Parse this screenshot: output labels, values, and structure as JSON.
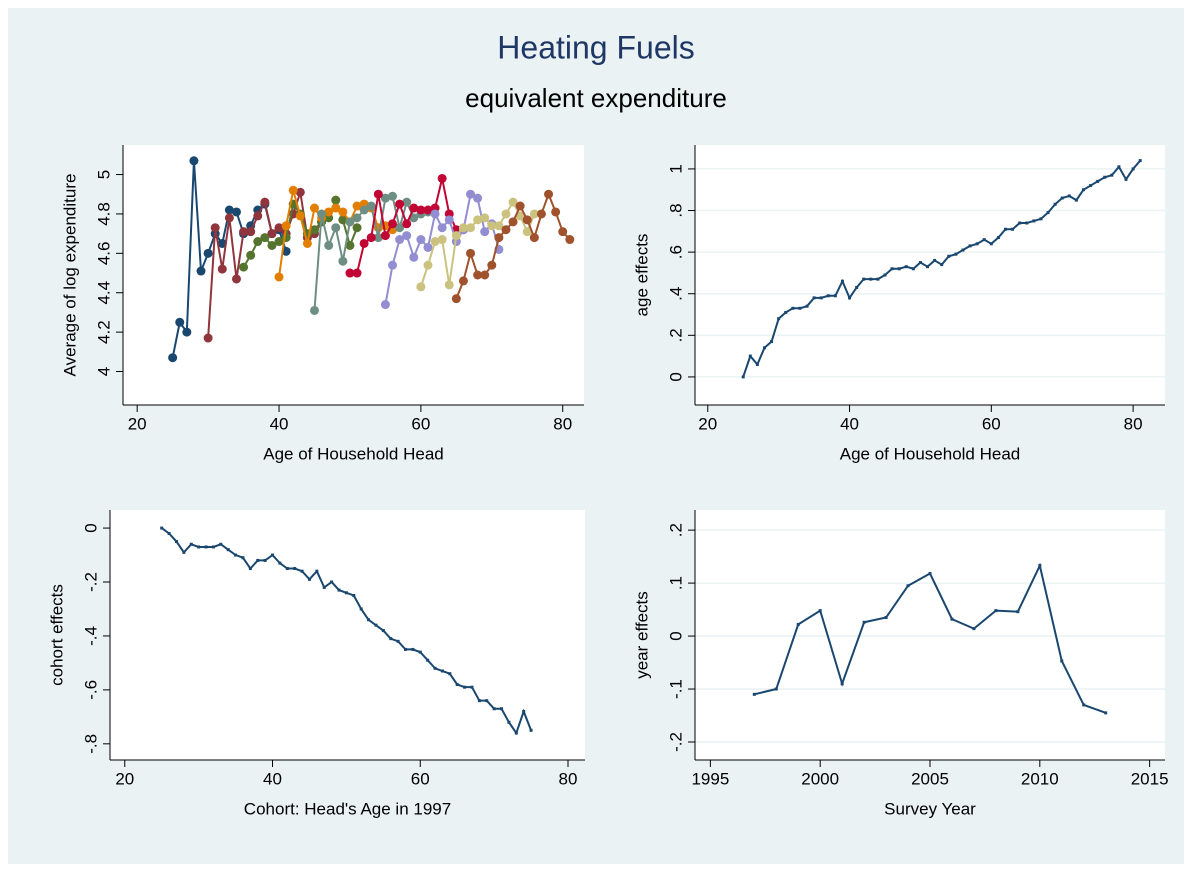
{
  "title": "Heating Fuels",
  "subtitle": "equivalent expenditure",
  "chart_data": [
    {
      "type": "line",
      "marker": "circle",
      "grid": false,
      "x_label": "Age of Household Head",
      "y_label": "Average of log expenditure",
      "xlim": [
        18,
        83
      ],
      "xticks": [
        20,
        40,
        60,
        80
      ],
      "ylim": [
        3.83,
        5.15
      ],
      "yticks": [
        4,
        4.2,
        4.4,
        4.6,
        4.8,
        5
      ],
      "series": [
        {
          "color": "#1a476f",
          "x": [
            25,
            26,
            27,
            28,
            29,
            30,
            31,
            32,
            33,
            34,
            35,
            36,
            37,
            38,
            39,
            40,
            41
          ],
          "values": [
            4.07,
            4.25,
            4.2,
            5.07,
            4.51,
            4.6,
            4.7,
            4.65,
            4.82,
            4.81,
            4.7,
            4.74,
            4.82,
            4.85,
            4.7,
            4.72,
            4.61
          ]
        },
        {
          "color": "#90353b",
          "x": [
            30,
            31,
            32,
            33,
            34,
            35,
            36,
            37,
            38,
            39,
            40,
            41,
            42,
            43,
            44,
            45,
            46
          ],
          "values": [
            4.17,
            4.73,
            4.52,
            4.78,
            4.47,
            4.71,
            4.71,
            4.79,
            4.86,
            4.7,
            4.73,
            4.7,
            4.8,
            4.91,
            4.68,
            4.7,
            4.76
          ]
        },
        {
          "color": "#55752f",
          "x": [
            35,
            36,
            37,
            38,
            39,
            40,
            41,
            42,
            43,
            44,
            45,
            46,
            47,
            48,
            49,
            50,
            51
          ],
          "values": [
            4.53,
            4.59,
            4.66,
            4.68,
            4.64,
            4.66,
            4.68,
            4.85,
            4.8,
            4.7,
            4.72,
            4.76,
            4.78,
            4.87,
            4.77,
            4.64,
            4.73
          ]
        },
        {
          "color": "#e37e00",
          "x": [
            40,
            41,
            42,
            43,
            44,
            45,
            46,
            47,
            48,
            49,
            50,
            51,
            52,
            53,
            54,
            55,
            56
          ],
          "values": [
            4.48,
            4.74,
            4.92,
            4.79,
            4.65,
            4.83,
            4.78,
            4.81,
            4.83,
            4.81,
            4.76,
            4.84,
            4.85,
            4.83,
            4.73,
            4.74,
            4.72
          ]
        },
        {
          "color": "#6e8e84",
          "x": [
            45,
            46,
            47,
            48,
            49,
            50,
            51,
            52,
            53,
            54,
            55,
            56,
            57,
            58,
            59,
            60,
            61
          ],
          "values": [
            4.31,
            4.8,
            4.64,
            4.73,
            4.56,
            4.76,
            4.78,
            4.82,
            4.84,
            4.68,
            4.88,
            4.89,
            4.73,
            4.86,
            4.78,
            4.8,
            4.81
          ]
        },
        {
          "color": "#c10534",
          "x": [
            50,
            51,
            52,
            53,
            54,
            55,
            56,
            57,
            58,
            59,
            60,
            61,
            62,
            63,
            64,
            65,
            66
          ],
          "values": [
            4.5,
            4.5,
            4.65,
            4.68,
            4.9,
            4.69,
            4.75,
            4.85,
            4.75,
            4.83,
            4.82,
            4.82,
            4.83,
            4.98,
            4.8,
            4.72,
            4.72
          ]
        },
        {
          "color": "#938dd2",
          "x": [
            55,
            56,
            57,
            58,
            59,
            60,
            61,
            62,
            63,
            64,
            65,
            66,
            67,
            68,
            69,
            70,
            71
          ],
          "values": [
            4.34,
            4.54,
            4.67,
            4.69,
            4.58,
            4.67,
            4.63,
            4.8,
            4.73,
            4.77,
            4.66,
            4.72,
            4.9,
            4.88,
            4.71,
            4.75,
            4.62
          ]
        },
        {
          "color": "#cac27e",
          "x": [
            60,
            61,
            62,
            63,
            64,
            65,
            66,
            67,
            68,
            69,
            70,
            71,
            72,
            73,
            74,
            75,
            76
          ],
          "values": [
            4.43,
            4.54,
            4.66,
            4.67,
            4.44,
            4.69,
            4.73,
            4.73,
            4.77,
            4.78,
            4.74,
            4.74,
            4.8,
            4.86,
            4.79,
            4.71,
            4.8
          ]
        },
        {
          "color": "#a0522d",
          "x": [
            65,
            66,
            67,
            68,
            69,
            70,
            71,
            72,
            73,
            74,
            75,
            76,
            77,
            78,
            79,
            80,
            81
          ],
          "values": [
            4.37,
            4.46,
            4.6,
            4.49,
            4.49,
            4.54,
            4.68,
            4.72,
            4.76,
            4.84,
            4.77,
            4.68,
            4.8,
            4.9,
            4.81,
            4.71,
            4.67
          ]
        }
      ]
    },
    {
      "type": "line",
      "marker": "square",
      "grid": true,
      "x_label": "Age of Household Head",
      "y_label": "age effects",
      "xlim": [
        18.2,
        84.5
      ],
      "xticks": [
        20,
        40,
        60,
        80
      ],
      "ylim": [
        -0.135,
        1.115
      ],
      "yticks": [
        0,
        {
          "value": 0.2,
          "label": ".2"
        },
        {
          "value": 0.4,
          "label": ".4"
        },
        {
          "value": 0.6,
          "label": ".6"
        },
        {
          "value": 0.8,
          "label": ".8"
        },
        1
      ],
      "series": [
        {
          "color": "#1a476f",
          "x": [
            25,
            26,
            27,
            28,
            29,
            30,
            31,
            32,
            33,
            34,
            35,
            36,
            37,
            38,
            39,
            40,
            41,
            42,
            43,
            44,
            45,
            46,
            47,
            48,
            49,
            50,
            51,
            52,
            53,
            54,
            55,
            56,
            57,
            58,
            59,
            60,
            61,
            62,
            63,
            64,
            65,
            66,
            67,
            68,
            69,
            70,
            71,
            72,
            73,
            74,
            75,
            76,
            77,
            78,
            79,
            80,
            81
          ],
          "values": [
            0,
            0.1,
            0.06,
            0.14,
            0.17,
            0.28,
            0.31,
            0.33,
            0.33,
            0.34,
            0.38,
            0.38,
            0.39,
            0.39,
            0.46,
            0.38,
            0.43,
            0.47,
            0.47,
            0.47,
            0.49,
            0.52,
            0.52,
            0.53,
            0.52,
            0.55,
            0.53,
            0.56,
            0.54,
            0.58,
            0.59,
            0.61,
            0.63,
            0.64,
            0.66,
            0.64,
            0.67,
            0.71,
            0.71,
            0.74,
            0.74,
            0.75,
            0.76,
            0.79,
            0.83,
            0.86,
            0.87,
            0.85,
            0.9,
            0.92,
            0.94,
            0.96,
            0.97,
            1.01,
            0.95,
            1.0,
            1.04
          ]
        }
      ]
    },
    {
      "type": "line",
      "marker": "square",
      "grid": false,
      "x_label": "Cohort: Head's Age in 1997",
      "y_label": "cohort effects",
      "xlim": [
        18,
        82.3
      ],
      "xticks": [
        20,
        40,
        60,
        80
      ],
      "ylim": [
        -0.86,
        0.067
      ],
      "yticks": [
        0,
        {
          "value": -0.2,
          "label": "-.2"
        },
        {
          "value": -0.4,
          "label": "-.4"
        },
        {
          "value": -0.6,
          "label": "-.6"
        },
        {
          "value": -0.8,
          "label": "-.8"
        }
      ],
      "series": [
        {
          "color": "#1a476f",
          "x": [
            25,
            26,
            27,
            28,
            29,
            30,
            31,
            32,
            33,
            34,
            35,
            36,
            37,
            38,
            39,
            40,
            41,
            42,
            43,
            44,
            45,
            46,
            47,
            48,
            49,
            50,
            51,
            52,
            53,
            54,
            55,
            56,
            57,
            58,
            59,
            60,
            61,
            62,
            63,
            64,
            65,
            66,
            67,
            68,
            69,
            70,
            71,
            72,
            73,
            74,
            75
          ],
          "values": [
            0,
            -0.02,
            -0.05,
            -0.09,
            -0.06,
            -0.07,
            -0.07,
            -0.07,
            -0.06,
            -0.08,
            -0.1,
            -0.11,
            -0.15,
            -0.12,
            -0.12,
            -0.1,
            -0.13,
            -0.15,
            -0.15,
            -0.16,
            -0.19,
            -0.16,
            -0.22,
            -0.2,
            -0.23,
            -0.24,
            -0.25,
            -0.3,
            -0.34,
            -0.36,
            -0.38,
            -0.41,
            -0.42,
            -0.45,
            -0.45,
            -0.46,
            -0.49,
            -0.52,
            -0.53,
            -0.54,
            -0.58,
            -0.59,
            -0.59,
            -0.64,
            -0.64,
            -0.67,
            -0.67,
            -0.72,
            -0.76,
            -0.68,
            -0.75
          ]
        }
      ]
    },
    {
      "type": "line",
      "marker": "square",
      "grid": true,
      "x_label": "Survey Year",
      "y_label": "year effects",
      "xlim": [
        1994.3,
        2015.7
      ],
      "xticks": [
        1995,
        2000,
        2005,
        2010,
        2015
      ],
      "ylim": [
        -0.234,
        0.238
      ],
      "yticks": [
        {
          "value": -0.2,
          "label": "-.2"
        },
        {
          "value": -0.1,
          "label": "-.1"
        },
        0,
        {
          "value": 0.1,
          "label": ".1"
        },
        {
          "value": 0.2,
          "label": ".2"
        }
      ],
      "series": [
        {
          "color": "#1a476f",
          "x": [
            1997,
            1998,
            1999,
            2000,
            2001,
            2002,
            2003,
            2004,
            2005,
            2006,
            2007,
            2008,
            2009,
            2010,
            2011,
            2012,
            2013
          ],
          "values": [
            -0.11,
            -0.1,
            0.022,
            0.048,
            -0.09,
            0.026,
            0.035,
            0.095,
            0.118,
            0.032,
            0.014,
            0.048,
            0.046,
            0.133,
            -0.047,
            -0.13,
            -0.145
          ]
        }
      ]
    }
  ]
}
